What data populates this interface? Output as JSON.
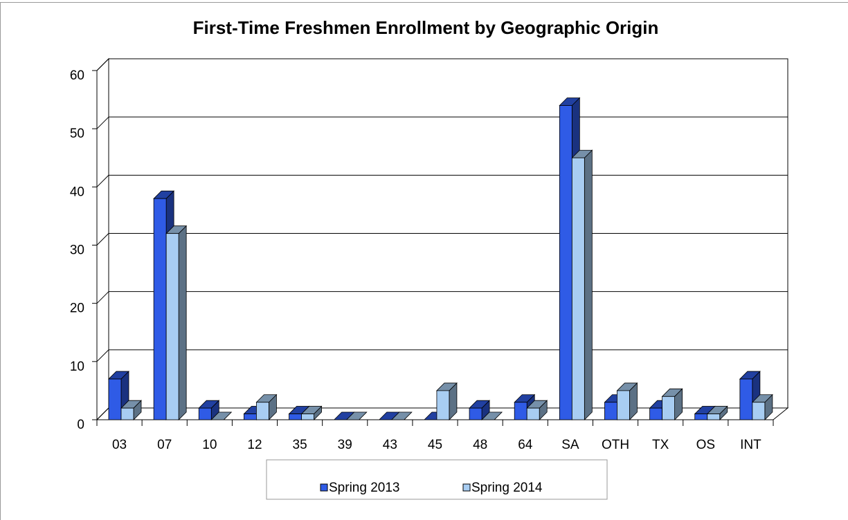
{
  "chart_data": {
    "type": "bar3d",
    "title": "First-Time Freshmen Enrollment by Geographic Origin",
    "categories": [
      "03",
      "07",
      "10",
      "12",
      "35",
      "39",
      "43",
      "45",
      "48",
      "64",
      "SA",
      "OTH",
      "TX",
      "OS",
      "INT"
    ],
    "series": [
      {
        "name": "Spring 2013",
        "color": "#2f5be6",
        "values": [
          7,
          38,
          2,
          1,
          1,
          0,
          0,
          0,
          2,
          3,
          54,
          3,
          2,
          1,
          7
        ]
      },
      {
        "name": "Spring 2014",
        "color": "#a8cdf2",
        "values": [
          2,
          32,
          0,
          3,
          1,
          0,
          0,
          5,
          0,
          2,
          45,
          5,
          4,
          1,
          3
        ]
      }
    ],
    "ylim": [
      0,
      60
    ],
    "yticks": [
      0,
      10,
      20,
      30,
      40,
      50,
      60
    ],
    "grid": true,
    "legend": "bottom"
  }
}
